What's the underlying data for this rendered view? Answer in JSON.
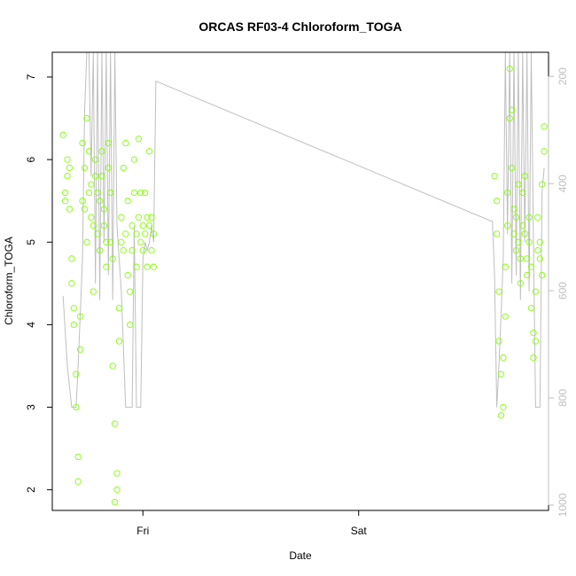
{
  "chart_data": {
    "type": "scatter",
    "title": "ORCAS RF03-4 Chloroform_TOGA",
    "xlabel": "Date",
    "ylabel": "Chloroform_TOGA",
    "x_tick_labels": [
      "Fri",
      "Sat"
    ],
    "x_tick_days": [
      1,
      2
    ],
    "xlim_days": [
      0.58,
      2.88
    ],
    "ylim": [
      1.75,
      7.3
    ],
    "y_ticks": [
      2,
      3,
      4,
      5,
      6,
      7
    ],
    "right_axis": {
      "ticks": [
        200,
        400,
        600,
        800,
        1000
      ],
      "ylim_reversed": [
        1010,
        155
      ],
      "color": "#bfbfbf"
    },
    "colors": {
      "points": "#80ff00",
      "line": "#bfbfbf",
      "axis": "#000000"
    },
    "grid": false,
    "series": [
      {
        "kind": "points",
        "x": [
          0.63,
          0.64,
          0.64,
          0.65,
          0.65,
          0.66,
          0.66,
          0.67,
          0.67,
          0.68,
          0.68,
          0.69,
          0.69,
          0.7,
          0.7,
          0.71,
          0.71,
          0.72,
          0.72,
          0.73,
          0.73,
          0.74,
          0.74,
          0.75,
          0.75,
          0.76,
          0.76,
          0.77,
          0.77,
          0.78,
          0.78,
          0.79,
          0.79,
          0.8,
          0.8,
          0.81,
          0.81,
          0.82,
          0.82,
          0.83,
          0.83,
          0.84,
          0.84,
          0.85,
          0.85,
          0.86,
          0.86,
          0.87,
          0.87,
          0.88,
          0.88,
          0.89,
          0.89,
          0.9,
          0.9,
          0.91,
          0.91,
          0.92,
          0.92,
          0.93,
          0.93,
          0.94,
          0.94,
          0.95,
          0.95,
          0.96,
          0.96,
          0.97,
          0.97,
          0.98,
          0.98,
          0.99,
          0.99,
          1.0,
          1.0,
          1.01,
          1.01,
          1.02,
          1.02,
          1.03,
          1.03,
          1.04,
          1.04,
          1.05,
          1.05,
          2.63,
          2.64,
          2.64,
          2.65,
          2.65,
          2.66,
          2.66,
          2.67,
          2.67,
          2.68,
          2.68,
          2.69,
          2.69,
          2.7,
          2.7,
          2.71,
          2.71,
          2.72,
          2.72,
          2.73,
          2.73,
          2.74,
          2.74,
          2.75,
          2.75,
          2.76,
          2.76,
          2.77,
          2.77,
          2.78,
          2.78,
          2.79,
          2.79,
          2.8,
          2.8,
          2.81,
          2.81,
          2.82,
          2.82,
          2.83,
          2.83,
          2.84,
          2.84,
          2.85,
          2.85,
          2.86,
          2.86
        ],
        "y": [
          6.3,
          5.6,
          5.5,
          5.8,
          6.0,
          5.4,
          5.9,
          4.8,
          4.5,
          4.0,
          4.2,
          3.0,
          3.4,
          2.4,
          2.1,
          3.7,
          4.1,
          5.5,
          6.2,
          5.9,
          5.4,
          5.0,
          6.5,
          5.6,
          6.1,
          5.7,
          5.3,
          5.2,
          4.4,
          5.8,
          6.0,
          5.6,
          5.1,
          4.9,
          5.5,
          5.8,
          6.1,
          5.2,
          5.4,
          4.7,
          5.0,
          5.9,
          6.2,
          5.6,
          5.0,
          4.8,
          3.5,
          2.8,
          1.85,
          2.2,
          2.0,
          3.8,
          4.2,
          5.3,
          5.0,
          4.9,
          5.9,
          6.2,
          5.1,
          5.5,
          4.6,
          4.0,
          4.4,
          4.9,
          5.2,
          6.0,
          5.6,
          5.1,
          4.7,
          5.3,
          6.25,
          5.0,
          5.6,
          5.2,
          4.9,
          5.6,
          5.1,
          4.7,
          5.3,
          6.1,
          5.2,
          4.9,
          5.3,
          5.1,
          4.7,
          5.8,
          5.5,
          5.1,
          4.4,
          3.8,
          3.4,
          2.9,
          3.0,
          3.6,
          4.1,
          4.7,
          5.2,
          5.6,
          6.5,
          7.1,
          6.6,
          5.9,
          5.4,
          5.1,
          4.9,
          5.3,
          5.7,
          5.0,
          4.8,
          4.5,
          5.2,
          5.6,
          5.8,
          5.1,
          4.8,
          4.6,
          5.0,
          5.3,
          4.7,
          4.2,
          3.9,
          3.6,
          3.8,
          4.4,
          4.9,
          5.3,
          5.0,
          4.8,
          4.6,
          5.7,
          6.4,
          6.1
        ]
      },
      {
        "kind": "line",
        "x": [
          0.63,
          0.65,
          0.67,
          0.69,
          0.7,
          0.72,
          0.73,
          0.74,
          0.75,
          0.76,
          0.77,
          0.78,
          0.79,
          0.8,
          0.81,
          0.82,
          0.83,
          0.84,
          0.85,
          0.86,
          0.87,
          0.88,
          0.9,
          0.92,
          0.93,
          0.94,
          0.95,
          0.96,
          0.97,
          0.98,
          0.99,
          1.0,
          1.01,
          1.02,
          1.03,
          1.04,
          1.05,
          1.06,
          2.62,
          2.63,
          2.64,
          2.65,
          2.66,
          2.67,
          2.68,
          2.69,
          2.7,
          2.71,
          2.72,
          2.73,
          2.74,
          2.75,
          2.76,
          2.77,
          2.78,
          2.79,
          2.8,
          2.81,
          2.82,
          2.83,
          2.84,
          2.85,
          2.86
        ],
        "y": [
          4.35,
          3.5,
          3.0,
          3.0,
          3.5,
          4.8,
          6.6,
          7.3,
          7.3,
          5.8,
          7.3,
          4.5,
          7.3,
          4.3,
          7.3,
          5.0,
          7.3,
          4.6,
          7.3,
          4.3,
          7.3,
          5.2,
          4.4,
          3.0,
          3.0,
          3.0,
          3.0,
          5.2,
          3.0,
          3.0,
          3.0,
          4.8,
          5.0,
          4.9,
          5.0,
          5.2,
          5.0,
          6.95,
          5.25,
          4.6,
          3.0,
          3.5,
          4.1,
          4.8,
          7.3,
          5.1,
          7.3,
          4.5,
          7.3,
          4.6,
          7.3,
          4.3,
          7.3,
          5.0,
          7.3,
          4.4,
          7.3,
          5.0,
          3.0,
          3.0,
          3.0,
          5.6,
          5.9
        ]
      }
    ]
  }
}
